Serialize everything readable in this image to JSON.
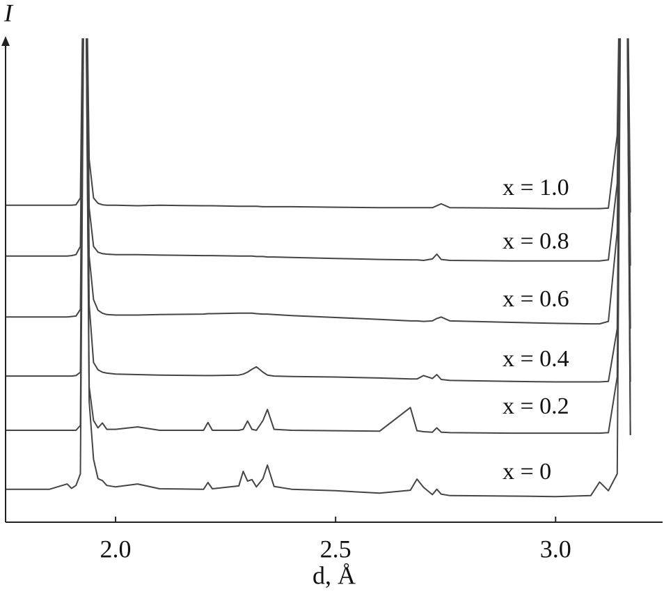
{
  "chart_data": {
    "type": "line",
    "y_label": "I",
    "x_label": "d, Å",
    "xlim": [
      1.75,
      3.24
    ],
    "ylim": [
      0,
      100
    ],
    "xticks": [
      {
        "value": 2,
        "label": "2.0"
      },
      2.5,
      {
        "value": 3,
        "label": "3.0"
      }
    ],
    "grid": false,
    "x": [
      1.75,
      1.85,
      1.89,
      1.9,
      1.91,
      1.92,
      1.93,
      1.94,
      1.95,
      1.96,
      1.97,
      1.98,
      2.0,
      2.05,
      2.1,
      2.2,
      2.21,
      2.22,
      2.28,
      2.29,
      2.3,
      2.31,
      2.32,
      2.335,
      2.345,
      2.36,
      2.4,
      2.5,
      2.6,
      2.67,
      2.685,
      2.7,
      2.72,
      2.73,
      2.74,
      2.76,
      2.9,
      3.0,
      3.08,
      3.1,
      3.12,
      3.14,
      3.15,
      3.16,
      3.17
    ],
    "series": [
      {
        "name": "x = 0",
        "color": "#444444",
        "values": [
          6.8,
          6.8,
          7.9,
          7.0,
          7.6,
          10,
          140,
          25,
          13,
          9,
          8.6,
          7.6,
          7.3,
          7.9,
          6.9,
          6.8,
          8.2,
          6.9,
          7.5,
          10.5,
          8.5,
          8.8,
          7.3,
          9,
          11.8,
          7.4,
          6.8,
          6.5,
          6,
          6.6,
          8.9,
          7.2,
          5.7,
          6.8,
          5.8,
          5.5,
          5.4,
          5.3,
          5.5,
          8.3,
          6.5,
          10,
          140,
          140,
          18
        ]
      },
      {
        "name": "x = 0.2",
        "color": "#444444",
        "values": [
          19,
          19,
          19,
          19,
          19,
          20,
          140,
          28,
          21,
          19.5,
          20.5,
          19.2,
          19.2,
          19.7,
          19,
          19,
          20.6,
          19,
          19,
          19.2,
          20.9,
          19.2,
          19,
          21,
          23.3,
          19.2,
          19,
          18.9,
          18.8,
          23.7,
          18.9,
          18.7,
          18.6,
          19.5,
          18.6,
          18.5,
          18.4,
          18.4,
          18.4,
          18.4,
          18.5,
          30,
          140,
          140,
          18
        ]
      },
      {
        "name": "x = 0.4",
        "color": "#444444",
        "values": [
          30.2,
          30.2,
          30.2,
          30.2,
          30.3,
          31,
          140,
          45,
          33,
          31.5,
          31,
          30.8,
          30.6,
          30.5,
          30.4,
          30.3,
          30.3,
          30.3,
          30.4,
          30.6,
          31,
          31.6,
          32.1,
          31,
          30.4,
          30.2,
          30.1,
          30,
          29.8,
          29.6,
          29.6,
          30.3,
          29.7,
          30.5,
          29.5,
          29.3,
          29.1,
          29,
          29,
          29,
          29.1,
          40,
          140,
          140,
          29
        ]
      },
      {
        "name": "x = 0.6",
        "color": "#444444",
        "values": [
          42.4,
          42.4,
          42.4,
          42.5,
          42.6,
          44,
          140,
          55,
          46,
          43.8,
          43.2,
          42.9,
          42.8,
          42.8,
          42.9,
          43,
          43.1,
          43.1,
          43.2,
          43.2,
          43.2,
          43.2,
          43.1,
          43,
          43,
          42.9,
          42.7,
          42.3,
          41.9,
          41.6,
          41.6,
          41.5,
          41.6,
          42.1,
          42.4,
          41.6,
          41.3,
          41.1,
          41,
          41,
          41.5,
          60,
          140,
          140,
          40
        ]
      },
      {
        "name": "x = 0.8",
        "color": "#444444",
        "values": [
          55,
          55,
          55,
          55.1,
          55.3,
          57,
          140,
          65,
          57,
          55.8,
          55.5,
          55.4,
          55.3,
          55.3,
          55.2,
          55.1,
          55.1,
          55.1,
          55,
          55,
          55,
          55,
          54.9,
          54.9,
          54.8,
          54.8,
          54.7,
          54.5,
          54.3,
          54.2,
          54.2,
          54.1,
          54.4,
          55.4,
          54.3,
          54.1,
          54,
          54,
          54,
          54,
          54.2,
          70,
          140,
          140,
          53
        ]
      },
      {
        "name": "x = 1.0",
        "color": "#444444",
        "values": [
          65.5,
          65.5,
          65.5,
          65.5,
          65.6,
          67,
          140,
          75,
          67,
          65.9,
          65.6,
          65.5,
          65.5,
          65.4,
          65.5,
          65.4,
          65.4,
          65.4,
          65.3,
          65.3,
          65.3,
          65.3,
          65.3,
          65.2,
          65.2,
          65.2,
          65.2,
          65.1,
          65,
          65,
          65,
          65,
          65,
          65.4,
          65.8,
          65,
          64.9,
          64.8,
          64.8,
          64.8,
          64.9,
          80,
          140,
          140,
          64
        ]
      }
    ]
  }
}
